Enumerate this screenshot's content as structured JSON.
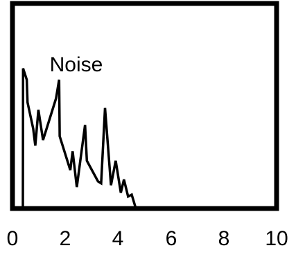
{
  "chart_data": {
    "type": "line",
    "title": "",
    "xlabel": "",
    "ylabel": "",
    "xlim": [
      0,
      10
    ],
    "ylim": [
      0,
      1
    ],
    "x_ticks": [
      "0",
      "2",
      "4",
      "6",
      "8",
      "10"
    ],
    "y_ticks_shown": false,
    "grid": false,
    "legend": "none",
    "frame_color": "#000000",
    "series": [
      {
        "color": "#000000",
        "points": [
          [
            0.0,
            0.0
          ],
          [
            0.4,
            0.0
          ],
          [
            0.41,
            0.74
          ],
          [
            0.55,
            0.68
          ],
          [
            0.58,
            0.56
          ],
          [
            0.8,
            0.42
          ],
          [
            0.88,
            0.33
          ],
          [
            1.0,
            0.52
          ],
          [
            1.18,
            0.36
          ],
          [
            1.68,
            0.58
          ],
          [
            1.8,
            0.68
          ],
          [
            1.82,
            0.38
          ],
          [
            2.23,
            0.2
          ],
          [
            2.32,
            0.3
          ],
          [
            2.48,
            0.11
          ],
          [
            2.8,
            0.44
          ],
          [
            2.87,
            0.25
          ],
          [
            3.3,
            0.14
          ],
          [
            3.42,
            0.13
          ],
          [
            3.57,
            0.53
          ],
          [
            3.8,
            0.12
          ],
          [
            3.98,
            0.25
          ],
          [
            4.18,
            0.08
          ],
          [
            4.3,
            0.15
          ],
          [
            4.46,
            0.06
          ],
          [
            4.6,
            0.07
          ],
          [
            4.75,
            0.0
          ],
          [
            10.0,
            0.0
          ]
        ]
      }
    ],
    "annotations": [
      {
        "text": "Noise",
        "x": 2.0,
        "y": 0.68
      }
    ]
  }
}
